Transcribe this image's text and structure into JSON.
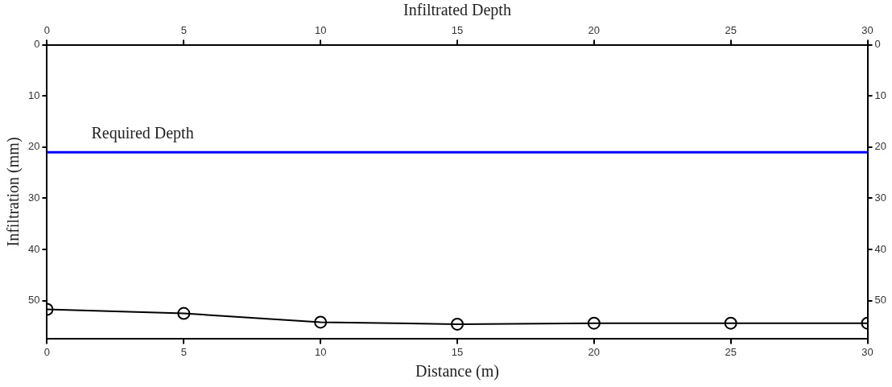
{
  "chart_data": {
    "type": "line",
    "xlabel": "Distance (m)",
    "ylabel": "Infiltration (mm)",
    "x2label": "Infiltrated Depth",
    "x": [
      0,
      5,
      10,
      15,
      20,
      25,
      30
    ],
    "series": [
      {
        "color": "#000000",
        "values": [
          51.7,
          52.5,
          54.2,
          54.6,
          54.4,
          54.4,
          54.4
        ]
      }
    ],
    "xlim": [
      0,
      30
    ],
    "xticks": [
      0,
      5,
      10,
      15,
      20,
      25,
      30
    ],
    "x2lim": [
      0,
      30
    ],
    "x2ticks": [
      0,
      5,
      10,
      15,
      20,
      25,
      30
    ],
    "ylim": [
      57.5,
      0
    ],
    "yticks": [
      0,
      10,
      20,
      30,
      40,
      50
    ],
    "y2lim": [
      57.5,
      0
    ],
    "y2ticks": [
      0,
      10,
      20,
      30,
      40,
      50
    ],
    "ref_lines": [
      {
        "axis": "y",
        "value": 21,
        "label": "Required Depth",
        "color": "#0000ff"
      }
    ],
    "grid": false,
    "legend": false,
    "marker": "circle",
    "line_style": "solid"
  }
}
